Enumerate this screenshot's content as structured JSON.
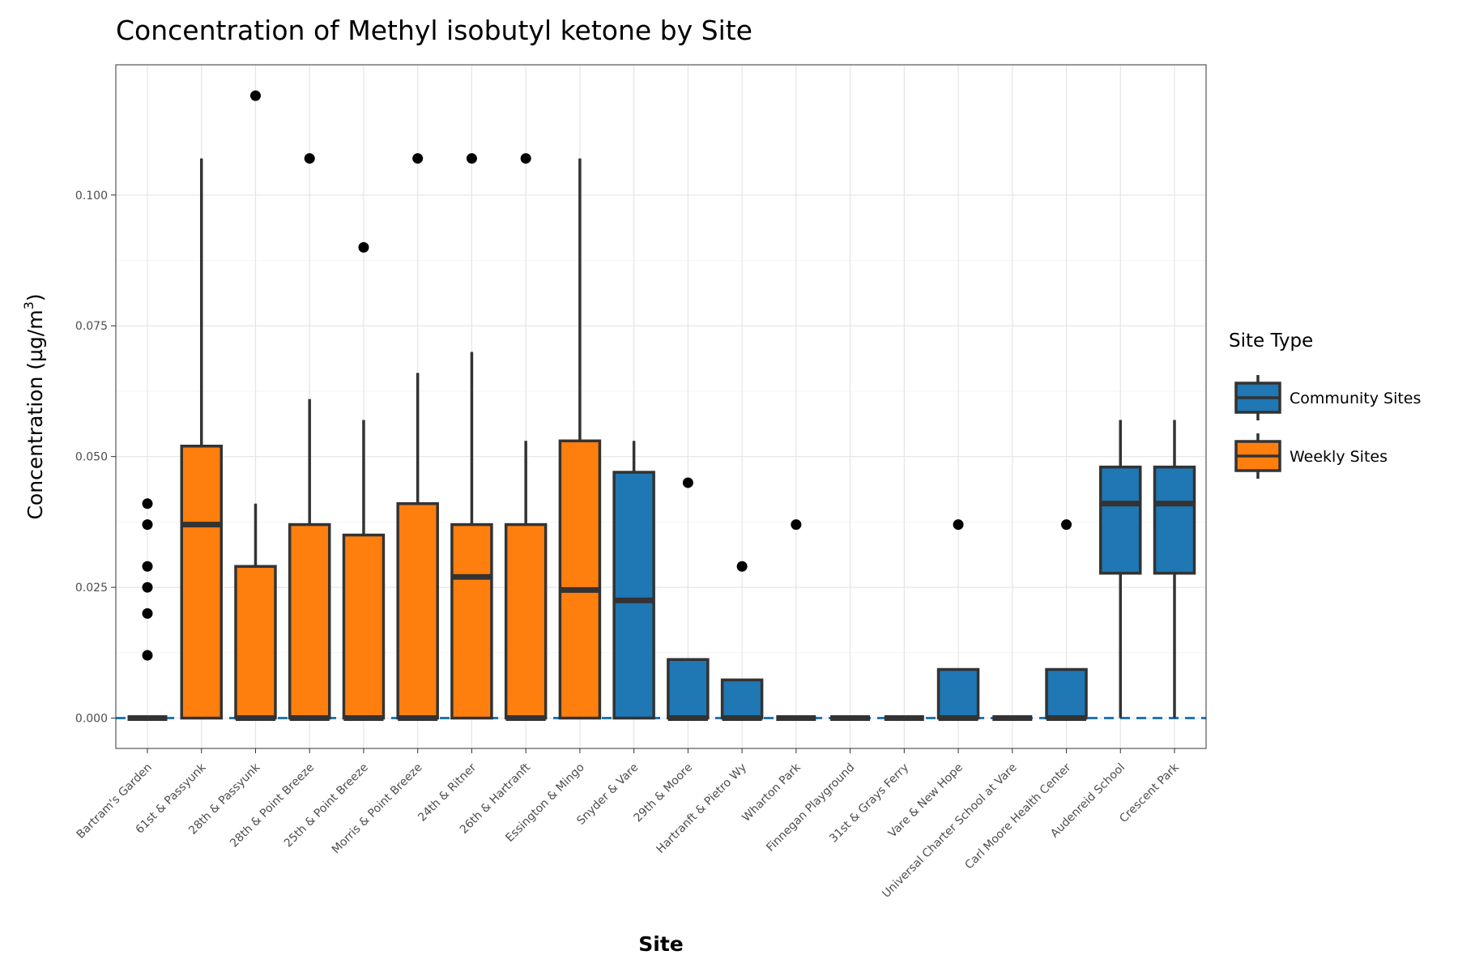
{
  "chart_data": {
    "type": "boxplot",
    "title": "Concentration of Methyl isobutyl ketone by Site",
    "xlabel": "Site",
    "ylabel": "Concentration (µg/m",
    "ylabel_superscript": "3",
    "ylabel_suffix": ")",
    "ylim": [
      -0.0058,
      0.1249
    ],
    "yticks": [
      0.0,
      0.025,
      0.05,
      0.075,
      0.1
    ],
    "ytick_labels": [
      "0.000",
      "0.025",
      "0.050",
      "0.075",
      "0.100"
    ],
    "reference_line": {
      "value": 0.0,
      "style": "dashed",
      "color": "#1f77b4"
    },
    "grid": true,
    "legend": {
      "title": "Site Type",
      "position": "right",
      "entries": [
        {
          "name": "Community Sites",
          "color": "#1f77b4"
        },
        {
          "name": "Weekly Sites",
          "color": "#ff7f0e"
        }
      ]
    },
    "colors": {
      "Community Sites": "#1f77b4",
      "Weekly Sites": "#ff7f0e",
      "outline": "#333333",
      "outlier": "#000000"
    },
    "boxes": [
      {
        "site": "Bartram's Garden",
        "type": "Weekly Sites",
        "q1": 0.0,
        "median": 0.0,
        "q3": 0.0,
        "whisker_low": 0.0,
        "whisker_high": 0.0,
        "outliers": [
          0.041,
          0.037,
          0.029,
          0.025,
          0.02,
          0.012
        ]
      },
      {
        "site": "61st & Passyunk",
        "type": "Weekly Sites",
        "q1": 0.0,
        "median": 0.037,
        "q3": 0.052,
        "whisker_low": 0.0,
        "whisker_high": 0.107,
        "outliers": []
      },
      {
        "site": "28th & Passyunk",
        "type": "Weekly Sites",
        "q1": 0.0,
        "median": 0.0,
        "q3": 0.029,
        "whisker_low": 0.0,
        "whisker_high": 0.041,
        "outliers": [
          0.119
        ]
      },
      {
        "site": "28th & Point Breeze",
        "type": "Weekly Sites",
        "q1": 0.0,
        "median": 0.0,
        "q3": 0.037,
        "whisker_low": 0.0,
        "whisker_high": 0.061,
        "outliers": [
          0.107
        ]
      },
      {
        "site": "25th & Point Breeze",
        "type": "Weekly Sites",
        "q1": 0.0,
        "median": 0.0,
        "q3": 0.035,
        "whisker_low": 0.0,
        "whisker_high": 0.057,
        "outliers": [
          0.09
        ]
      },
      {
        "site": "Morris & Point Breeze",
        "type": "Weekly Sites",
        "q1": 0.0,
        "median": 0.0,
        "q3": 0.041,
        "whisker_low": 0.0,
        "whisker_high": 0.066,
        "outliers": [
          0.107
        ]
      },
      {
        "site": "24th & Ritner",
        "type": "Weekly Sites",
        "q1": 0.0,
        "median": 0.027,
        "q3": 0.037,
        "whisker_low": 0.0,
        "whisker_high": 0.07,
        "outliers": [
          0.107
        ]
      },
      {
        "site": "26th & Hartranft",
        "type": "Weekly Sites",
        "q1": 0.0,
        "median": 0.0,
        "q3": 0.037,
        "whisker_low": 0.0,
        "whisker_high": 0.053,
        "outliers": [
          0.107
        ]
      },
      {
        "site": "Essington & Mingo",
        "type": "Weekly Sites",
        "q1": 0.0,
        "median": 0.0245,
        "q3": 0.053,
        "whisker_low": 0.0,
        "whisker_high": 0.107,
        "outliers": []
      },
      {
        "site": "Snyder & Vare",
        "type": "Community Sites",
        "q1": 0.0,
        "median": 0.0225,
        "q3": 0.047,
        "whisker_low": 0.0,
        "whisker_high": 0.053,
        "outliers": []
      },
      {
        "site": "29th & Moore",
        "type": "Community Sites",
        "q1": 0.0,
        "median": 0.0,
        "q3": 0.0112,
        "whisker_low": 0.0,
        "whisker_high": 0.0112,
        "outliers": [
          0.045
        ]
      },
      {
        "site": "Hartranft & Pietro Wy",
        "type": "Community Sites",
        "q1": 0.0,
        "median": 0.0,
        "q3": 0.0073,
        "whisker_low": 0.0,
        "whisker_high": 0.0073,
        "outliers": [
          0.029
        ]
      },
      {
        "site": "Wharton Park",
        "type": "Community Sites",
        "q1": 0.0,
        "median": 0.0,
        "q3": 0.0,
        "whisker_low": 0.0,
        "whisker_high": 0.0,
        "outliers": [
          0.037
        ]
      },
      {
        "site": "Finnegan Playground",
        "type": "Community Sites",
        "q1": 0.0,
        "median": 0.0,
        "q3": 0.0,
        "whisker_low": 0.0,
        "whisker_high": 0.0,
        "outliers": []
      },
      {
        "site": "31st & Grays Ferry",
        "type": "Community Sites",
        "q1": 0.0,
        "median": 0.0,
        "q3": 0.0,
        "whisker_low": 0.0,
        "whisker_high": 0.0,
        "outliers": []
      },
      {
        "site": "Vare & New Hope",
        "type": "Community Sites",
        "q1": 0.0,
        "median": 0.0,
        "q3": 0.0093,
        "whisker_low": 0.0,
        "whisker_high": 0.0093,
        "outliers": [
          0.037
        ]
      },
      {
        "site": "Universal Charter School at Vare",
        "type": "Community Sites",
        "q1": 0.0,
        "median": 0.0,
        "q3": 0.0,
        "whisker_low": 0.0,
        "whisker_high": 0.0,
        "outliers": []
      },
      {
        "site": "Carl Moore Health Center",
        "type": "Community Sites",
        "q1": 0.0,
        "median": 0.0,
        "q3": 0.0093,
        "whisker_low": 0.0,
        "whisker_high": 0.0093,
        "outliers": [
          0.037
        ]
      },
      {
        "site": "Audenreid School",
        "type": "Community Sites",
        "q1": 0.0277,
        "median": 0.041,
        "q3": 0.048,
        "whisker_low": 0.0,
        "whisker_high": 0.057,
        "outliers": []
      },
      {
        "site": "Crescent Park",
        "type": "Community Sites",
        "q1": 0.0277,
        "median": 0.041,
        "q3": 0.048,
        "whisker_low": 0.0,
        "whisker_high": 0.057,
        "outliers": []
      }
    ]
  }
}
